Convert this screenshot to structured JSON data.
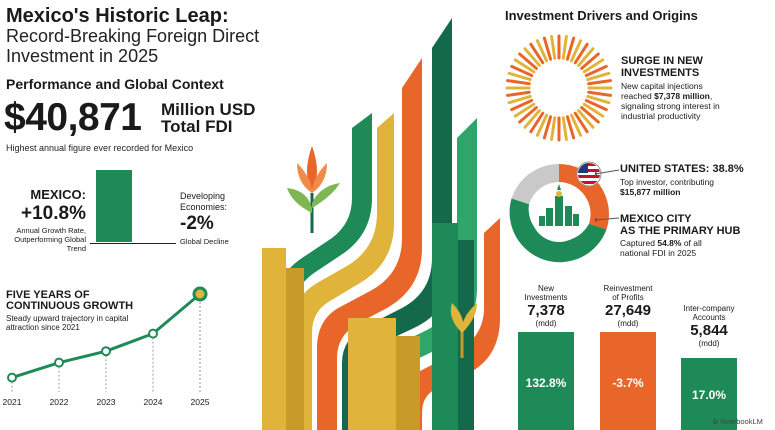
{
  "title": {
    "line1": "Mexico's Historic Leap:",
    "line2": "Record-Breaking Foreign Direct",
    "line3": "Investment in 2025"
  },
  "performance": {
    "heading": "Performance and Global Context",
    "total_value": "$40,871",
    "total_unit_1": "Million USD",
    "total_unit_2": "Total FDI",
    "note": "Highest annual figure ever recorded for Mexico"
  },
  "comparison": {
    "mexico_label": "MEXICO:",
    "mexico_value": "+10.8%",
    "mexico_desc": "Annual Growth Rate, Outperforming Global Trend",
    "developing_label": "Developing Economies:",
    "developing_value": "-2%",
    "developing_desc": "Global Decline"
  },
  "trajectory": {
    "title_line1": "FIVE YEARS OF",
    "title_line2": "CONTINUOUS GROWTH",
    "desc": "Steady upward trajectory in capital attraction since 2021",
    "years": [
      "2021",
      "2022",
      "2023",
      "2024",
      "2025"
    ],
    "points": [
      0.05,
      0.22,
      0.35,
      0.55,
      1.0
    ]
  },
  "drivers": {
    "heading": "Investment Drivers and Origins",
    "surge_title_1": "SURGE IN NEW",
    "surge_title_2": "INVESTMENTS",
    "surge_desc_1": "New capital injections",
    "surge_desc_2a": "reached ",
    "surge_desc_2b": "$7,378 million",
    "surge_desc_2c": ",",
    "surge_desc_3": "signaling strong interest in",
    "surge_desc_4": "industrial productivity",
    "us_title": "UNITED STATES: 38.8%",
    "us_desc_1": "Top investor, contributing",
    "us_desc_2": "$15,877 million",
    "cdmx_title_1": "MEXICO CITY",
    "cdmx_title_2": "AS THE PRIMARY HUB",
    "cdmx_desc_1a": "Captured ",
    "cdmx_desc_1b": "54.8%",
    "cdmx_desc_1c": " of all",
    "cdmx_desc_2": "national FDI in 2025"
  },
  "breakdown": [
    {
      "label_1": "New",
      "label_2": "Investments",
      "value": "7,378",
      "unit": "(mdd)",
      "change": "132.8%",
      "color": "#1e8a57"
    },
    {
      "label_1": "Reinvestment",
      "label_2": "of Profits",
      "value": "27,649",
      "unit": "(mdd)",
      "change": "-3.7%",
      "color": "#e9662a"
    },
    {
      "label_1": "Inter-company",
      "label_2": "Accounts",
      "value": "5,844",
      "unit": "(mdd)",
      "change": "17.0%",
      "color": "#1e8a57"
    }
  ],
  "colors": {
    "green": "#1e8a57",
    "dark_green": "#14694a",
    "orange": "#e9662a",
    "gold": "#e0b43a",
    "light_green": "#7db653"
  },
  "brand": "NotebookLM"
}
